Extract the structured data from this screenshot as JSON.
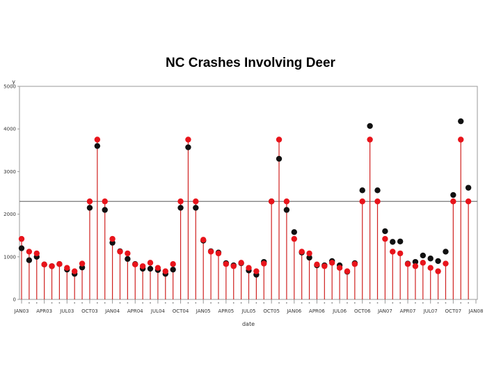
{
  "chart_data": {
    "type": "scatter",
    "title": "NC Crashes Involving Deer",
    "xlabel": "date",
    "ylabel": "y",
    "ylim": [
      0,
      5000
    ],
    "yticks": [
      "0",
      "1000",
      "2000",
      "3000",
      "4000",
      "5000"
    ],
    "xtick_labels": [
      "JAN03",
      "APR03",
      "JUL03",
      "OCT03",
      "JAN04",
      "APR04",
      "JUL04",
      "OCT04",
      "JAN05",
      "APR05",
      "JUL05",
      "OCT05",
      "JAN06",
      "APR06",
      "JUL06",
      "OCT06",
      "JAN07",
      "APR07",
      "JUL07",
      "OCT07",
      "JAN08"
    ],
    "reference_line": 2300,
    "colors": {
      "actual": "#111111",
      "fitted": "#e8141b",
      "needle": "#d0201f",
      "reference": "#777777"
    },
    "series": [
      {
        "values": [
          1200,
          920,
          1000,
          820,
          780,
          830,
          700,
          600,
          750,
          2150,
          3600,
          2100,
          1330,
          1130,
          950,
          830,
          720,
          720,
          690,
          600,
          700,
          2150,
          3570,
          2150,
          1380,
          1130,
          1100,
          850,
          800,
          850,
          680,
          580,
          880,
          2300,
          3300,
          2100,
          1580,
          1100,
          980,
          800,
          800,
          900,
          800,
          650,
          850,
          2560,
          4070,
          2560,
          1600,
          1350,
          1360,
          840,
          880,
          1030,
          960,
          900,
          1120,
          2450,
          4180,
          2620
        ]
      },
      {
        "values": [
          1420,
          1120,
          1080,
          820,
          780,
          830,
          740,
          660,
          840,
          2300,
          3750,
          2300,
          1420,
          1120,
          1080,
          820,
          780,
          860,
          740,
          660,
          830,
          2300,
          3750,
          2300,
          1400,
          1120,
          1080,
          830,
          780,
          860,
          740,
          660,
          840,
          2300,
          3750,
          2300,
          1420,
          1120,
          1080,
          820,
          780,
          860,
          740,
          660,
          830,
          2300,
          3750,
          2300,
          1420,
          1120,
          1080,
          830,
          780,
          860,
          740,
          660,
          840,
          2300,
          3750,
          2300
        ]
      }
    ]
  }
}
